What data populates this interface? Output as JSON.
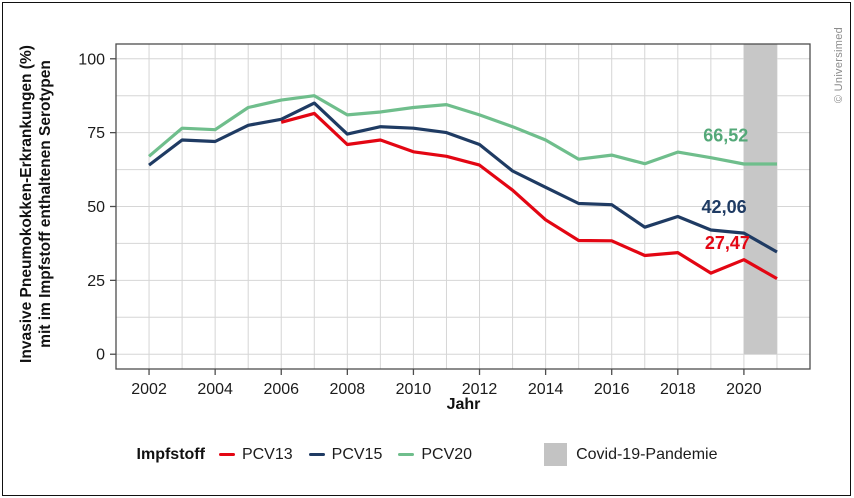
{
  "frame": {
    "copyright": "© Universimed"
  },
  "legend": {
    "title": "Impfstoff",
    "items": [
      {
        "label": "PCV13",
        "color": "#e30613"
      },
      {
        "label": "PCV15",
        "color": "#1f3b63"
      },
      {
        "label": "PCV20",
        "color": "#6fbe8c"
      }
    ],
    "covid_label": "Covid-19-Pandemie",
    "covid_color": "#c3c3c3"
  },
  "chart_data": {
    "type": "line",
    "xlabel": "Jahr",
    "ylabel_line1": "Invasive Pneumokokken-Erkrankungen (%)",
    "ylabel_line2": "mit im Impfstoff enthaltenen Serotypen",
    "x_domain": [
      2001,
      2022
    ],
    "y_domain": [
      -5,
      105
    ],
    "x_ticks": [
      2002,
      2004,
      2006,
      2008,
      2010,
      2012,
      2014,
      2016,
      2018,
      2020
    ],
    "y_ticks": [
      0,
      25,
      50,
      75,
      100
    ],
    "grid": {
      "x_step_years": 1,
      "y_step": 12.5,
      "color": "#d6d6d6"
    },
    "years": [
      2002,
      2003,
      2004,
      2005,
      2006,
      2007,
      2008,
      2009,
      2010,
      2011,
      2012,
      2013,
      2014,
      2015,
      2016,
      2017,
      2018,
      2019,
      2020,
      2021
    ],
    "series": [
      {
        "name": "PCV20",
        "color": "#6fbe8c",
        "values": [
          67,
          76.5,
          76,
          83.5,
          86,
          87.5,
          81,
          82,
          83.5,
          84.5,
          81,
          77,
          72.5,
          66,
          67.4,
          64.5,
          68.4,
          66.52,
          64.4,
          64.4
        ]
      },
      {
        "name": "PCV15",
        "color": "#1f3b63",
        "values": [
          64,
          72.5,
          72,
          77.5,
          79.5,
          85,
          74.5,
          77,
          76.5,
          75,
          71,
          62,
          56.5,
          51,
          50.6,
          43,
          46.6,
          42.06,
          41,
          34.6
        ]
      },
      {
        "name": "PCV13",
        "color": "#e30613",
        "values": [
          null,
          null,
          null,
          null,
          78.5,
          81.5,
          71,
          72.5,
          68.5,
          67,
          64,
          55.5,
          45.5,
          38.5,
          38.4,
          33.4,
          34.4,
          27.47,
          32,
          25.6
        ]
      }
    ],
    "band": {
      "label": "Covid-19-Pandemie",
      "x_from": 2020,
      "x_to": 2021,
      "y_from": 0,
      "y_to": 105,
      "color": "#c7c7c7"
    },
    "value_labels": [
      {
        "text": "66,52",
        "series": "PCV20",
        "year_labeled": 2019,
        "x": 2019.45,
        "y": 72.0,
        "color": "#54a878"
      },
      {
        "text": "42,06",
        "series": "PCV15",
        "year_labeled": 2019,
        "x": 2019.4,
        "y": 47.8,
        "color": "#1f3b63"
      },
      {
        "text": "27,47",
        "series": "PCV13",
        "year_labeled": 2019,
        "x": 2019.5,
        "y": 35.6,
        "color": "#e30613"
      }
    ],
    "axis": {
      "spine_color": "#4d4d4d",
      "tick_color": "#4d4d4d",
      "tick_label_color": "#1c1c1c"
    }
  }
}
